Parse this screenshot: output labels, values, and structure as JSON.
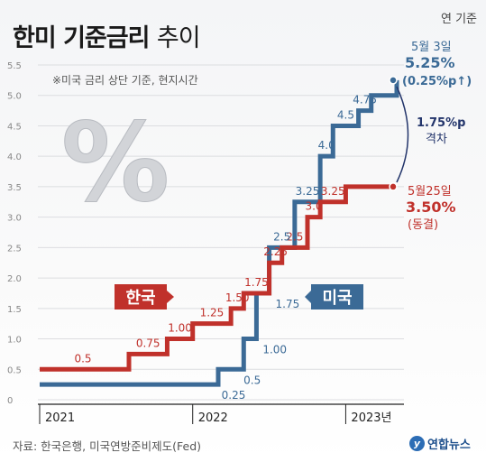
{
  "header": {
    "title_bold": "한미 기준금리",
    "title_light": "추이",
    "basis": "연 기준"
  },
  "note": "※미국 금리 상단 기준, 현지시간",
  "source": "자료: 한국은행, 미국연방준비제도(Fed)",
  "logo": {
    "text": "연합뉴스"
  },
  "colors": {
    "korea": "#c0312b",
    "usa": "#3b6a96",
    "gap": "#23356b"
  },
  "chart_data": {
    "type": "line",
    "step": true,
    "ylim": [
      0,
      5.5
    ],
    "yticks": [
      "0",
      "0.5",
      "1.0",
      "1.5",
      "2.0",
      "2.5",
      "3.0",
      "3.5",
      "4.0",
      "4.5",
      "5.0",
      "5.5"
    ],
    "xticks": [
      "2021",
      "2022",
      "2023년"
    ],
    "series": [
      {
        "name": "한국",
        "color": "#c0312b",
        "points": [
          {
            "x": "2021-01",
            "y": 0.5
          },
          {
            "x": "2021-08",
            "y": 0.75
          },
          {
            "x": "2021-11",
            "y": 1.0
          },
          {
            "x": "2022-01",
            "y": 1.25
          },
          {
            "x": "2022-04",
            "y": 1.5
          },
          {
            "x": "2022-05",
            "y": 1.75
          },
          {
            "x": "2022-07",
            "y": 2.25
          },
          {
            "x": "2022-08",
            "y": 2.5
          },
          {
            "x": "2022-10",
            "y": 3.0
          },
          {
            "x": "2022-11",
            "y": 3.25
          },
          {
            "x": "2023-01",
            "y": 3.5
          },
          {
            "x": "2023-05",
            "y": 3.5
          }
        ],
        "labels": [
          "0.5",
          "0.75",
          "1.00",
          "1.25",
          "1.50",
          "1.75",
          "2.25",
          "2.5",
          "3.0",
          "3.25"
        ]
      },
      {
        "name": "미국",
        "color": "#3b6a96",
        "points": [
          {
            "x": "2021-01",
            "y": 0.25
          },
          {
            "x": "2022-03",
            "y": 0.5
          },
          {
            "x": "2022-05",
            "y": 1.0
          },
          {
            "x": "2022-06",
            "y": 1.75
          },
          {
            "x": "2022-07",
            "y": 2.5
          },
          {
            "x": "2022-09",
            "y": 3.25
          },
          {
            "x": "2022-11",
            "y": 4.0
          },
          {
            "x": "2022-12",
            "y": 4.5
          },
          {
            "x": "2023-02",
            "y": 4.75
          },
          {
            "x": "2023-03",
            "y": 5.0
          },
          {
            "x": "2023-05",
            "y": 5.25
          }
        ],
        "labels": [
          "0.25",
          "0.5",
          "1.00",
          "1.75",
          "2.5",
          "3.25",
          "4.0",
          "4.5",
          "4.75"
        ]
      }
    ],
    "annotations": {
      "usa_end": {
        "date": "5월 3일",
        "value": "5.25%",
        "change": "(0.25%p",
        "arrow": "↑",
        "close": ")"
      },
      "korea_end": {
        "date": "5월25일",
        "value": "3.50%",
        "status": "(동결)"
      },
      "gap": {
        "value": "1.75%p",
        "label": "격차"
      }
    }
  }
}
